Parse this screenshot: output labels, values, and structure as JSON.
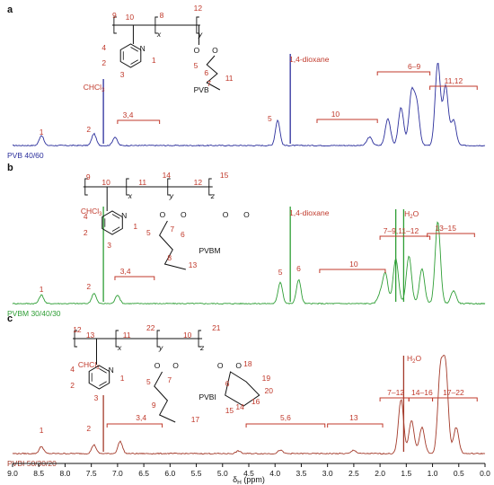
{
  "chart_data": {
    "type": "line",
    "xlabel": "δH (ppm)",
    "xlabel_main": "δ",
    "xlabel_sub": "H",
    "xlabel_unit": " (ppm)",
    "xlim": [
      9.0,
      0.0
    ],
    "x_reversed": true,
    "x_ticks": [
      "9.0",
      "8.5",
      "8.0",
      "7.5",
      "7.0",
      "6.5",
      "6.0",
      "5.5",
      "5.0",
      "4.5",
      "4.0",
      "3.5",
      "3.0",
      "2.5",
      "2.0",
      "1.5",
      "1.0",
      "0.5",
      "0.0"
    ],
    "grid": false,
    "panels": [
      {
        "id": "a",
        "series_name": "PVB 40/60",
        "color": "#2b2f9c",
        "polymer_label": "PVB",
        "structure_numbers": [
          "9",
          "10",
          "8",
          "12",
          "5",
          "6",
          "7",
          "11",
          "4",
          "2",
          "3",
          "1"
        ],
        "structure_subscripts": [
          "x",
          "y"
        ],
        "structure_atoms": [
          "N",
          "O",
          "O"
        ],
        "annotations": [
          "1",
          "2",
          "CHCl3",
          "3,4",
          "5",
          "1,4-dioxane",
          "10",
          "6–9",
          "11,12"
        ],
        "peaks": [
          {
            "x": 8.45,
            "y": 0.12
          },
          {
            "x": 7.45,
            "y": 0.14
          },
          {
            "x": 7.05,
            "y": 0.1
          },
          {
            "x": 3.95,
            "y": 0.3
          },
          {
            "x": 2.2,
            "y": 0.1
          },
          {
            "x": 1.85,
            "y": 0.32
          },
          {
            "x": 1.6,
            "y": 0.45
          },
          {
            "x": 1.4,
            "y": 0.6
          },
          {
            "x": 1.3,
            "y": 0.48
          },
          {
            "x": 0.9,
            "y": 0.98
          },
          {
            "x": 0.75,
            "y": 0.7
          },
          {
            "x": 0.6,
            "y": 0.3
          }
        ]
      },
      {
        "id": "b",
        "series_name": "PVBM 30/40/30",
        "color": "#2e9e35",
        "polymer_label": "PVBM",
        "structure_numbers": [
          "9",
          "10",
          "11",
          "14",
          "12",
          "15",
          "5",
          "7",
          "6",
          "8",
          "13",
          "4",
          "2",
          "3",
          "1"
        ],
        "structure_subscripts": [
          "x",
          "y",
          "z"
        ],
        "structure_atoms": [
          "N",
          "O",
          "O",
          "O",
          "O"
        ],
        "annotations": [
          "1",
          "2",
          "CHCl3",
          "3,4",
          "5",
          "6",
          "1,4-dioxane",
          "10",
          "7–9,11–12",
          "H2O",
          "13–15"
        ],
        "peaks": [
          {
            "x": 8.45,
            "y": 0.1
          },
          {
            "x": 7.45,
            "y": 0.12
          },
          {
            "x": 7.0,
            "y": 0.1
          },
          {
            "x": 3.9,
            "y": 0.25
          },
          {
            "x": 3.55,
            "y": 0.28
          },
          {
            "x": 2.0,
            "y": 0.1
          },
          {
            "x": 1.9,
            "y": 0.35
          },
          {
            "x": 1.7,
            "y": 0.52
          },
          {
            "x": 1.45,
            "y": 0.55
          },
          {
            "x": 1.2,
            "y": 0.4
          },
          {
            "x": 0.9,
            "y": 0.95
          },
          {
            "x": 0.6,
            "y": 0.15
          }
        ]
      },
      {
        "id": "c",
        "series_name": "PVBI 50/30/20",
        "color": "#a33a2a",
        "polymer_label": "PVBI",
        "structure_numbers": [
          "12",
          "13",
          "11",
          "22",
          "10",
          "21",
          "18",
          "19",
          "20",
          "6",
          "14",
          "16",
          "15",
          "5",
          "7",
          "9",
          "17",
          "4",
          "2",
          "3",
          "1"
        ],
        "structure_subscripts": [
          "x",
          "y",
          "z"
        ],
        "structure_atoms": [
          "N",
          "O",
          "O",
          "O",
          "O"
        ],
        "annotations": [
          "1",
          "2",
          "CHCl3",
          "3,4",
          "5,6",
          "13",
          "H2O",
          "7–12",
          "14–16",
          "17–22"
        ],
        "peaks": [
          {
            "x": 8.45,
            "y": 0.08
          },
          {
            "x": 7.45,
            "y": 0.1
          },
          {
            "x": 6.95,
            "y": 0.14
          },
          {
            "x": 4.7,
            "y": 0.03
          },
          {
            "x": 3.9,
            "y": 0.04
          },
          {
            "x": 2.5,
            "y": 0.04
          },
          {
            "x": 1.6,
            "y": 0.62
          },
          {
            "x": 1.4,
            "y": 0.38
          },
          {
            "x": 1.2,
            "y": 0.3
          },
          {
            "x": 0.85,
            "y": 0.92
          },
          {
            "x": 0.75,
            "y": 0.95
          },
          {
            "x": 0.55,
            "y": 0.3
          }
        ]
      }
    ]
  }
}
